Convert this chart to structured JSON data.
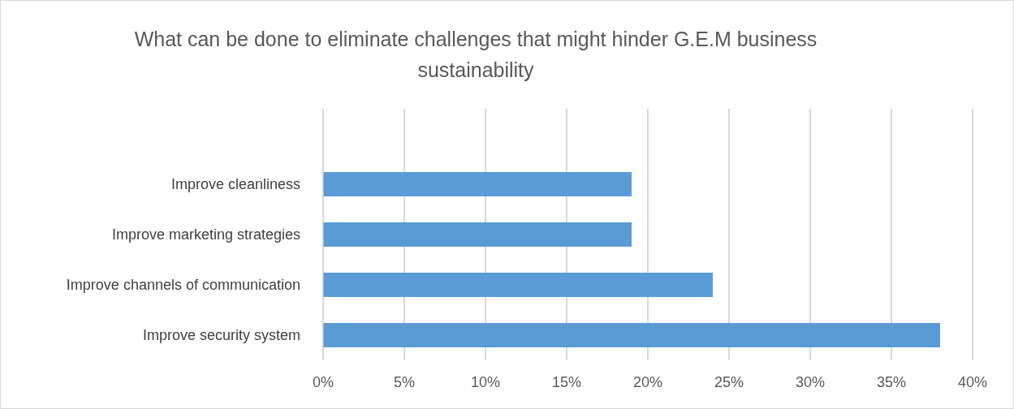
{
  "chart_data": {
    "type": "bar",
    "orientation": "horizontal",
    "title": "What can be done to eliminate challenges that might hinder G.E.M business sustainability",
    "categories": [
      "Improve cleanliness",
      "Improve marketing strategies",
      "Improve channels of communication",
      "Improve security system"
    ],
    "values": [
      19,
      19,
      24,
      38
    ],
    "color": "#5b9bd5",
    "xlim": [
      0,
      40
    ],
    "xticks": [
      {
        "value": 0,
        "label": "0%"
      },
      {
        "value": 5,
        "label": "5%"
      },
      {
        "value": 10,
        "label": "10%"
      },
      {
        "value": 15,
        "label": "15%"
      },
      {
        "value": 20,
        "label": "20%"
      },
      {
        "value": 25,
        "label": "25%"
      },
      {
        "value": 30,
        "label": "30%"
      },
      {
        "value": 35,
        "label": "35%"
      },
      {
        "value": 40,
        "label": "40%"
      }
    ],
    "grid": "x",
    "legend": false
  }
}
